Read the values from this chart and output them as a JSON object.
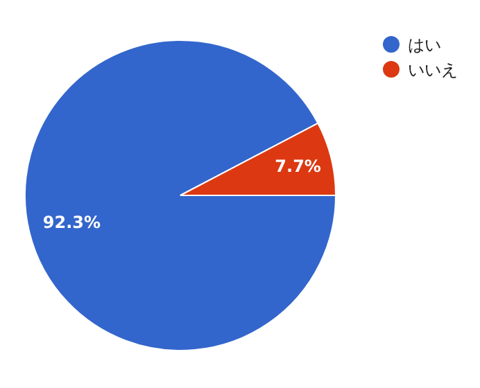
{
  "chart_data": {
    "type": "pie",
    "categories": [
      "はい",
      "いいえ"
    ],
    "values": [
      92.3,
      7.7
    ],
    "colors": [
      "#3366cc",
      "#dc3912"
    ],
    "value_labels": [
      "92.3%",
      "7.7%"
    ],
    "legend": "top right"
  }
}
